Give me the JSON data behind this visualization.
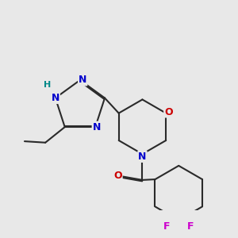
{
  "bg_color": "#e8e8e8",
  "bond_color": "#2a2a2a",
  "bond_width": 1.5,
  "atom_colors": {
    "N": "#0000cc",
    "O": "#cc0000",
    "F": "#cc00cc",
    "H": "#008888",
    "C": "#2a2a2a"
  }
}
